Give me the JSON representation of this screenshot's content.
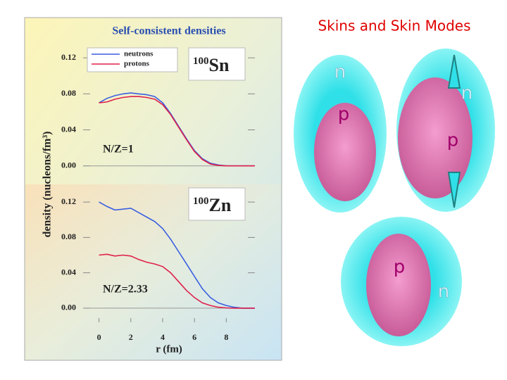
{
  "chart_data": [
    {
      "type": "line",
      "title": "Self-consistent densities",
      "ylabel": "density (nucleons/fm³)",
      "nucleus_mass": "100",
      "nucleus_symbol": "Sn",
      "annotation": "N/Z=1",
      "x": [
        0,
        0.5,
        1,
        1.5,
        2,
        2.5,
        3,
        3.5,
        4,
        4.5,
        5,
        5.5,
        6,
        6.5,
        7,
        7.5,
        8,
        8.5,
        9,
        9.8
      ],
      "series": [
        {
          "name": "neutrons",
          "color": "#3a5fe0",
          "values": [
            0.07,
            0.075,
            0.078,
            0.08,
            0.081,
            0.08,
            0.079,
            0.077,
            0.07,
            0.058,
            0.044,
            0.03,
            0.017,
            0.008,
            0.003,
            0.001,
            0.0,
            0.0,
            0.0,
            0.0
          ]
        },
        {
          "name": "protons",
          "color": "#e0204a",
          "values": [
            0.07,
            0.071,
            0.074,
            0.076,
            0.077,
            0.077,
            0.076,
            0.074,
            0.068,
            0.057,
            0.043,
            0.029,
            0.016,
            0.007,
            0.002,
            0.0005,
            0.0,
            0.0,
            0.0,
            0.0
          ]
        }
      ],
      "xlim": [
        -1,
        9.8
      ],
      "ylim": [
        -0.019,
        0.135
      ],
      "yticks": [
        {
          "value": 0,
          "label": "0.00"
        },
        0.04,
        0.08,
        0.12
      ]
    },
    {
      "type": "line",
      "xlabel": "r (fm)",
      "nucleus_mass": "100",
      "nucleus_symbol": "Zn",
      "annotation": "N/Z=2.33",
      "x": [
        0,
        0.5,
        1,
        1.5,
        2,
        2.5,
        3,
        3.5,
        4,
        4.5,
        5,
        5.5,
        6,
        6.5,
        7,
        7.5,
        8,
        8.5,
        9,
        9.8
      ],
      "series": [
        {
          "color": "#3a5fe0",
          "values": [
            0.12,
            0.115,
            0.111,
            0.112,
            0.113,
            0.108,
            0.103,
            0.098,
            0.09,
            0.078,
            0.064,
            0.05,
            0.036,
            0.022,
            0.012,
            0.006,
            0.003,
            0.001,
            0.0,
            0.0
          ]
        },
        {
          "color": "#e0204a",
          "values": [
            0.06,
            0.061,
            0.059,
            0.06,
            0.059,
            0.055,
            0.052,
            0.05,
            0.047,
            0.04,
            0.03,
            0.02,
            0.012,
            0.006,
            0.003,
            0.001,
            0.0003,
            0.0,
            0.0,
            0.0
          ]
        }
      ],
      "xlim": [
        -1,
        9.8
      ],
      "ylim": [
        -0.016,
        0.14
      ],
      "xticks": [
        0,
        2,
        4,
        6,
        8
      ],
      "yticks": [
        {
          "value": 0,
          "label": "0.00"
        },
        0.04,
        0.08,
        0.12
      ]
    }
  ],
  "diagram": {
    "title": "Skins and Skin Modes",
    "labels": [
      "n",
      "p",
      "n",
      "p",
      "p",
      "n"
    ]
  }
}
